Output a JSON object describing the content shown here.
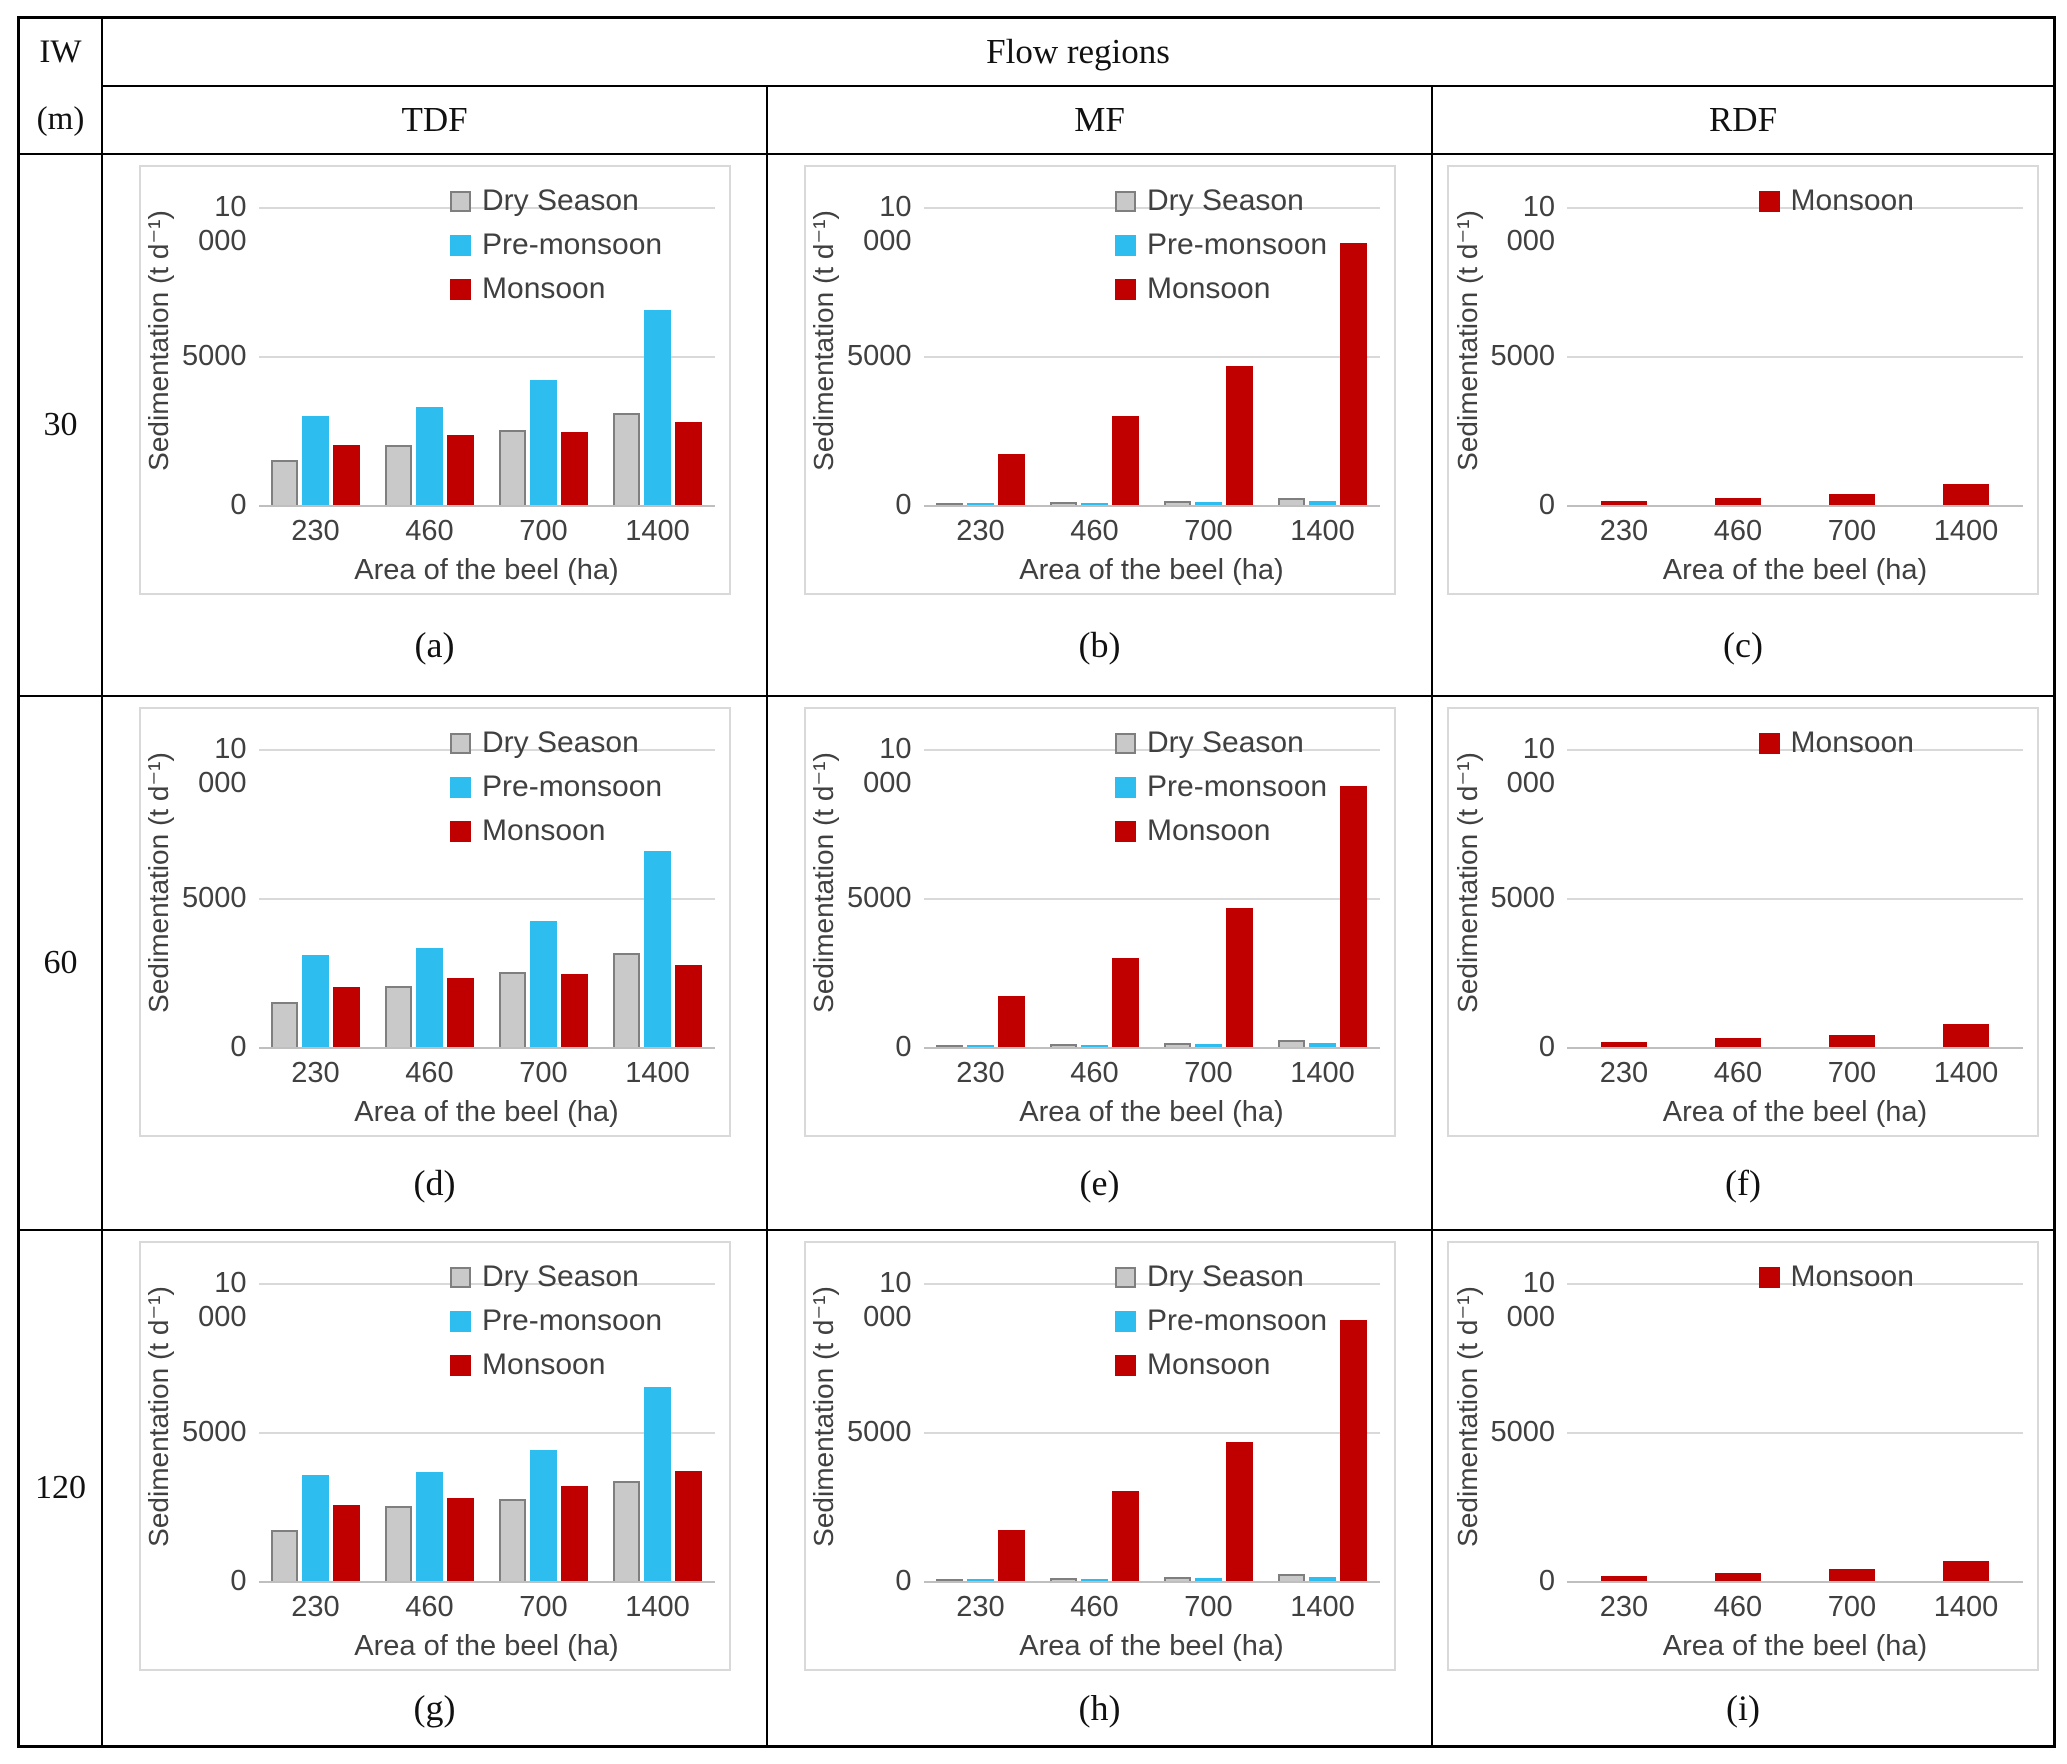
{
  "table": {
    "corner_line1": "IW",
    "corner_line2": "(m)",
    "top_header": "Flow regions",
    "col_headers": [
      "TDF",
      "MF",
      "RDF"
    ],
    "row_headers": [
      "30",
      "60",
      "120"
    ]
  },
  "colors": {
    "dry": "#c9c9c9",
    "dry_border": "#7f7f7f",
    "pre": "#2ebdef",
    "mon": "#c00000",
    "gridline": "#d9d9d9",
    "axis_line": "#bfbfbf",
    "chart_text": "#404040"
  },
  "chart_common": {
    "ylabel": "Sedimentation (t d⁻¹)",
    "xlabel": "Area of the beel (ha)",
    "ytick_labels": [
      "10 000",
      "5000",
      "0"
    ],
    "ytick_values": [
      10000,
      5000,
      0
    ],
    "ylim": [
      0,
      10000
    ],
    "grid": "horizontal",
    "legend_position": "top-inside"
  },
  "chart_data": [
    {
      "id": "a",
      "caption": "(a)",
      "row": "30",
      "flow_region": "TDF",
      "type": "bar",
      "categories": [
        "230",
        "460",
        "700",
        "1400"
      ],
      "series": [
        {
          "name": "Dry Season",
          "color_key": "dry",
          "values": [
            1500,
            2000,
            2500,
            3100
          ]
        },
        {
          "name": "Pre-monsoon",
          "color_key": "pre",
          "values": [
            3000,
            3300,
            4200,
            6550
          ]
        },
        {
          "name": "Monsoon",
          "color_key": "mon",
          "values": [
            2000,
            2350,
            2450,
            2800
          ]
        }
      ]
    },
    {
      "id": "b",
      "caption": "(b)",
      "row": "30",
      "flow_region": "MF",
      "type": "bar",
      "categories": [
        "230",
        "460",
        "700",
        "1400"
      ],
      "series": [
        {
          "name": "Dry Season",
          "color_key": "dry",
          "values": [
            60,
            90,
            120,
            230
          ]
        },
        {
          "name": "Pre-monsoon",
          "color_key": "pre",
          "values": [
            50,
            60,
            90,
            140
          ]
        },
        {
          "name": "Monsoon",
          "color_key": "mon",
          "values": [
            1700,
            3000,
            4650,
            8800
          ]
        }
      ]
    },
    {
      "id": "c",
      "caption": "(c)",
      "row": "30",
      "flow_region": "RDF",
      "type": "bar",
      "categories": [
        "230",
        "460",
        "700",
        "1400"
      ],
      "series": [
        {
          "name": "Monsoon",
          "color_key": "mon",
          "values": [
            150,
            250,
            380,
            700
          ]
        }
      ]
    },
    {
      "id": "d",
      "caption": "(d)",
      "row": "60",
      "flow_region": "TDF",
      "type": "bar",
      "categories": [
        "230",
        "460",
        "700",
        "1400"
      ],
      "series": [
        {
          "name": "Dry Season",
          "color_key": "dry",
          "values": [
            1520,
            2050,
            2530,
            3150
          ]
        },
        {
          "name": "Pre-monsoon",
          "color_key": "pre",
          "values": [
            3100,
            3330,
            4230,
            6570
          ]
        },
        {
          "name": "Monsoon",
          "color_key": "mon",
          "values": [
            2000,
            2320,
            2440,
            2760
          ]
        }
      ]
    },
    {
      "id": "e",
      "caption": "(e)",
      "row": "60",
      "flow_region": "MF",
      "type": "bar",
      "categories": [
        "230",
        "460",
        "700",
        "1400"
      ],
      "series": [
        {
          "name": "Dry Season",
          "color_key": "dry",
          "values": [
            60,
            90,
            120,
            230
          ]
        },
        {
          "name": "Pre-monsoon",
          "color_key": "pre",
          "values": [
            50,
            60,
            90,
            140
          ]
        },
        {
          "name": "Monsoon",
          "color_key": "mon",
          "values": [
            1700,
            3000,
            4650,
            8750
          ]
        }
      ]
    },
    {
      "id": "f",
      "caption": "(f)",
      "row": "60",
      "flow_region": "RDF",
      "type": "bar",
      "categories": [
        "230",
        "460",
        "700",
        "1400"
      ],
      "series": [
        {
          "name": "Monsoon",
          "color_key": "mon",
          "values": [
            170,
            290,
            390,
            760
          ]
        }
      ]
    },
    {
      "id": "g",
      "caption": "(g)",
      "row": "120",
      "flow_region": "TDF",
      "type": "bar",
      "categories": [
        "230",
        "460",
        "700",
        "1400"
      ],
      "series": [
        {
          "name": "Dry Season",
          "color_key": "dry",
          "values": [
            1700,
            2500,
            2750,
            3350
          ]
        },
        {
          "name": "Pre-monsoon",
          "color_key": "pre",
          "values": [
            3550,
            3650,
            4400,
            6500
          ]
        },
        {
          "name": "Monsoon",
          "color_key": "mon",
          "values": [
            2550,
            2800,
            3180,
            3700
          ]
        }
      ]
    },
    {
      "id": "h",
      "caption": "(h)",
      "row": "120",
      "flow_region": "MF",
      "type": "bar",
      "categories": [
        "230",
        "460",
        "700",
        "1400"
      ],
      "series": [
        {
          "name": "Dry Season",
          "color_key": "dry",
          "values": [
            60,
            90,
            120,
            240
          ]
        },
        {
          "name": "Pre-monsoon",
          "color_key": "pre",
          "values": [
            50,
            60,
            90,
            150
          ]
        },
        {
          "name": "Monsoon",
          "color_key": "mon",
          "values": [
            1700,
            3030,
            4660,
            8760
          ]
        }
      ]
    },
    {
      "id": "i",
      "caption": "(i)",
      "row": "120",
      "flow_region": "RDF",
      "type": "bar",
      "categories": [
        "230",
        "460",
        "700",
        "1400"
      ],
      "series": [
        {
          "name": "Monsoon",
          "color_key": "mon",
          "values": [
            160,
            280,
            390,
            680
          ]
        }
      ]
    }
  ]
}
